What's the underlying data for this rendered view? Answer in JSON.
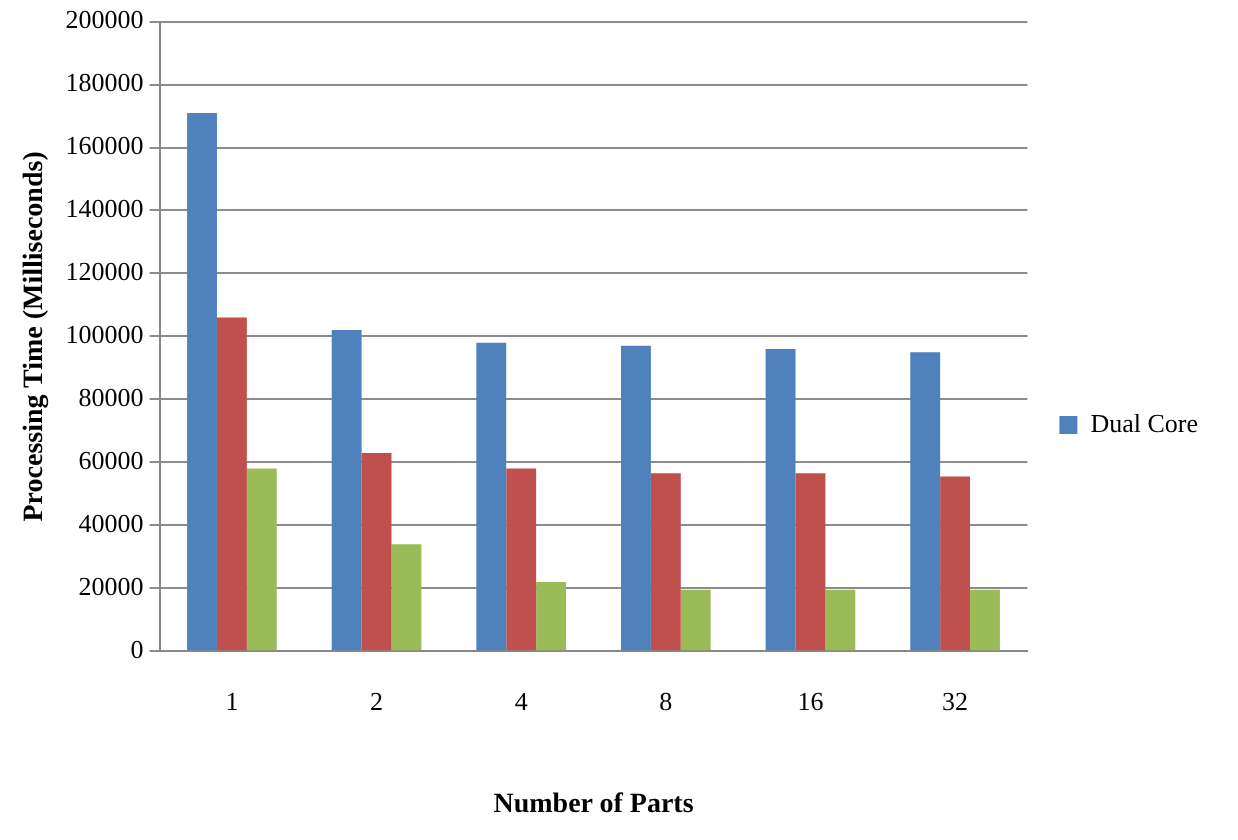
{
  "chart_data": {
    "type": "bar",
    "xlabel": "Number of Parts",
    "ylabel": "Processing Time (Milliseconds)",
    "categories": [
      "1",
      "2",
      "4",
      "8",
      "16",
      "32"
    ],
    "series": [
      {
        "name": "Dual Core",
        "color": "#4f81bd",
        "values": [
          171000,
          102000,
          98000,
          97000,
          96000,
          95000
        ]
      },
      {
        "color": "#c0504d",
        "values": [
          106000,
          63000,
          58000,
          56500,
          56500,
          55500
        ]
      },
      {
        "color": "#9bbb59",
        "values": [
          58000,
          34000,
          22000,
          19500,
          19500,
          19500
        ]
      }
    ],
    "ylim": [
      0,
      200000
    ],
    "yticks": [
      0,
      20000,
      40000,
      60000,
      80000,
      100000,
      120000,
      140000,
      160000,
      180000,
      200000
    ],
    "grid": "y",
    "legend": "right"
  }
}
